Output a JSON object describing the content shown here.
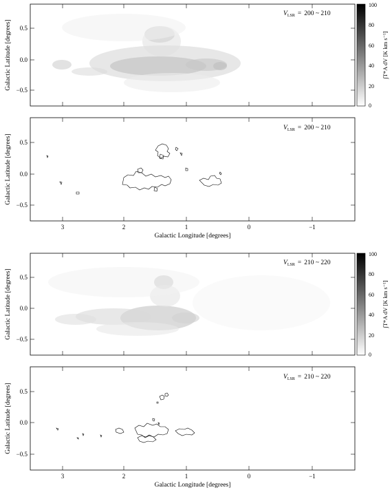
{
  "panels": [
    {
      "velocity_range": "200 ~ 210",
      "y_label": "Galactic Latitude [degrees]",
      "y_ticks": [
        "0.5",
        "0.0",
        "−0.5"
      ]
    },
    {
      "velocity_range": "200 ~ 210",
      "y_label": "Galactic Latitude [degrees]",
      "y_ticks": [
        "0.5",
        "0.0",
        "−0.5"
      ],
      "x_label": "Galactic Longitude [degrees]",
      "x_ticks": [
        "3",
        "2",
        "1",
        "0",
        "−1"
      ]
    },
    {
      "velocity_range": "210 ~ 220",
      "y_label": "Galactic Latitude [degrees]",
      "y_ticks": [
        "0.5",
        "0.0",
        "−0.5"
      ]
    },
    {
      "velocity_range": "210 ~ 220",
      "y_label": "Galactic Latitude [degrees]",
      "y_ticks": [
        "0.5",
        "0.0",
        "−0.5"
      ],
      "x_label": "Galactic Longitude [degrees]",
      "x_ticks": [
        "3",
        "2",
        "1",
        "0",
        "−1"
      ]
    }
  ],
  "velocity_prefix": "V",
  "velocity_subscript": "LSR",
  "velocity_equals": "=",
  "colorbar": {
    "ticks": [
      "100",
      "80",
      "60",
      "40",
      "20",
      "0"
    ],
    "label": "∫T*A dV [K km s⁻¹]"
  },
  "colors": {
    "frame": "#000000",
    "emission": "#b0b0b0",
    "contour": "#000000"
  }
}
